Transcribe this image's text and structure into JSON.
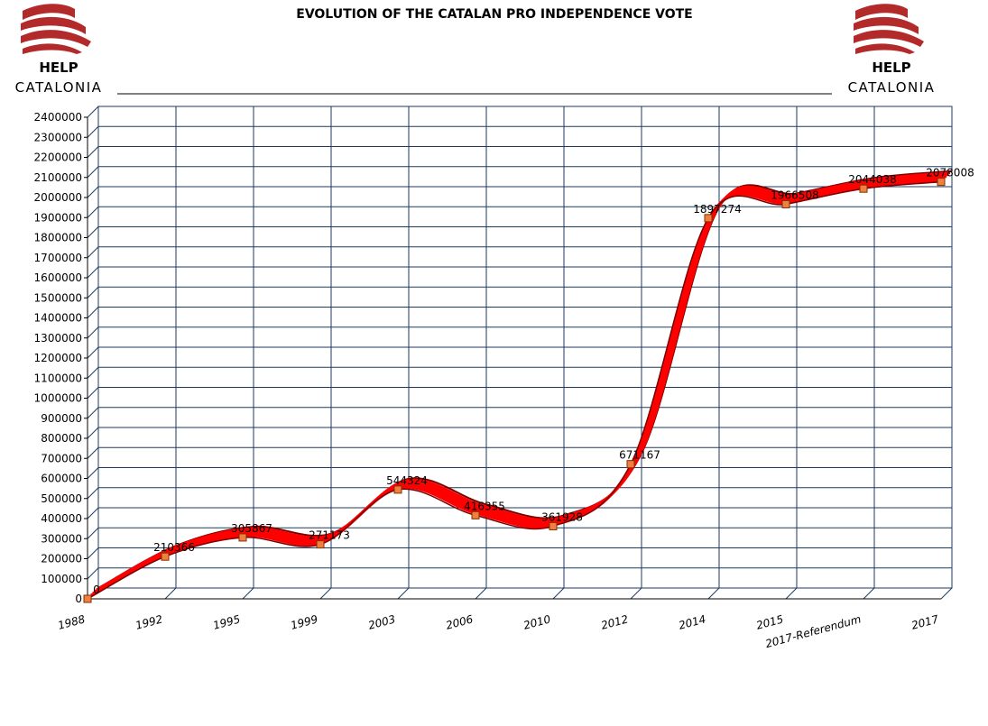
{
  "logos": {
    "top_line": "HELP",
    "bottom_line": "CATALONIA",
    "brand_color": "#b22a2a"
  },
  "colors": {
    "grid": "#1f3a5f",
    "ribbon": "#ff0000",
    "ribbon_back": "#7a0000",
    "marker": "#f08040"
  },
  "chart_data": {
    "type": "line",
    "title": "EVOLUTION OF THE CATALAN PRO INDEPENDENCE VOTE",
    "xlabel": "",
    "ylabel": "",
    "categories": [
      "1988",
      "1992",
      "1995",
      "1999",
      "2003",
      "2006",
      "2010",
      "2012",
      "2014",
      "2015",
      "2017-Referendum",
      "2017"
    ],
    "series": [
      {
        "values": [
          0,
          210366,
          305867,
          271173,
          544324,
          416355,
          361928,
          671167,
          1897274,
          1966508,
          2044038,
          2078008
        ],
        "labels": [
          "0",
          "210366",
          "305867",
          "271173",
          "544324",
          "416355",
          "361928",
          "671167",
          "1897274",
          "1966508",
          "2044038",
          "2078008"
        ]
      }
    ],
    "ylim": [
      0,
      2400000
    ],
    "ytick_step": 100000,
    "grid": true,
    "style": "3d ribbon"
  }
}
